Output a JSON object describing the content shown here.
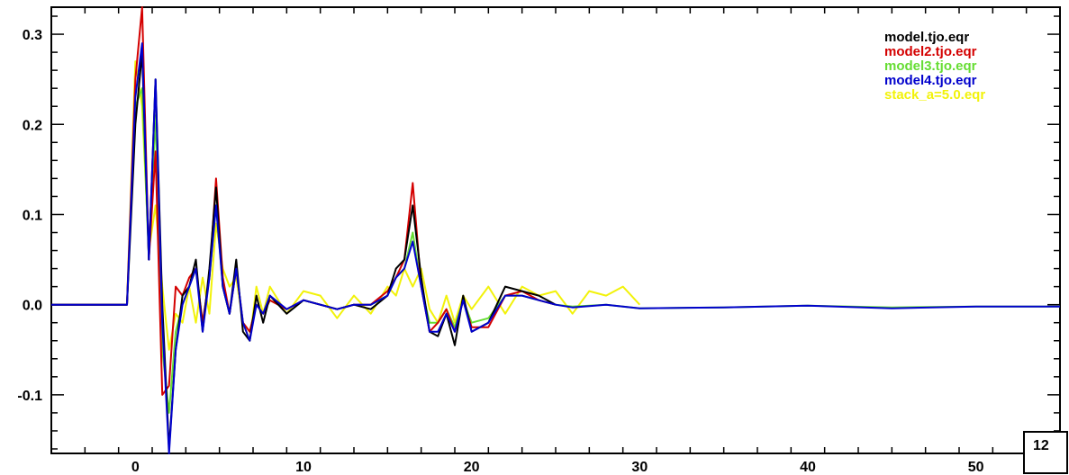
{
  "chart_data": {
    "type": "line",
    "title": "",
    "xlabel": "",
    "ylabel": "",
    "xlim": [
      -5,
      55
    ],
    "ylim": [
      -0.165,
      0.33
    ],
    "x_ticks": [
      0,
      10,
      20,
      30,
      40,
      50
    ],
    "x_tick_labels": [
      "0",
      "10",
      "20",
      "30",
      "40",
      "50"
    ],
    "y_ticks": [
      -0.1,
      0.0,
      0.1,
      0.2,
      0.3
    ],
    "y_tick_labels": [
      "-0.1",
      "0.0",
      "0.1",
      "0.2",
      "0.3"
    ],
    "legend_position": "top-right",
    "corner_label": "12",
    "grid": false,
    "series": [
      {
        "name": "model.tjo.eqr",
        "color": "#000000",
        "x": [
          -5,
          -2,
          -0.5,
          0,
          0.4,
          0.8,
          1.2,
          1.6,
          2.0,
          2.4,
          2.8,
          3.2,
          3.6,
          4.0,
          4.4,
          4.8,
          5.2,
          5.6,
          6.0,
          6.4,
          6.8,
          7.2,
          7.6,
          8,
          9,
          10,
          11,
          12,
          13,
          14,
          15,
          15.5,
          16,
          16.5,
          17,
          17.5,
          18,
          18.5,
          19,
          19.5,
          20,
          21,
          22,
          23,
          24,
          25
        ],
        "y": [
          0,
          0,
          0,
          0.2,
          0.28,
          0.05,
          0.25,
          0.0,
          -0.16,
          -0.05,
          0.01,
          0.02,
          0.05,
          -0.03,
          0.04,
          0.13,
          0.02,
          -0.01,
          0.05,
          -0.03,
          -0.04,
          0.01,
          -0.02,
          0.01,
          -0.01,
          0.005,
          0.0,
          -0.005,
          0.0,
          -0.005,
          0.01,
          0.04,
          0.05,
          0.11,
          0.03,
          -0.03,
          -0.035,
          -0.01,
          -0.045,
          0.01,
          -0.03,
          -0.02,
          0.02,
          0.015,
          0.01,
          0.0
        ]
      },
      {
        "name": "model2.tjo.eqr",
        "color": "#d40000",
        "x": [
          -5,
          -2,
          -0.5,
          0,
          0.4,
          0.8,
          1.2,
          1.6,
          2.0,
          2.4,
          2.8,
          3.2,
          3.6,
          4.0,
          4.4,
          4.8,
          5.2,
          5.6,
          6.0,
          6.4,
          6.8,
          7.2,
          7.6,
          8,
          9,
          10,
          11,
          12,
          13,
          14,
          15,
          15.5,
          16,
          16.5,
          17,
          17.5,
          18,
          18.5,
          19,
          19.5,
          20,
          21,
          22,
          23,
          24,
          25
        ],
        "y": [
          0,
          0,
          0,
          0.25,
          0.33,
          0.05,
          0.17,
          -0.1,
          -0.09,
          0.02,
          0.01,
          0.03,
          0.04,
          -0.02,
          0.03,
          0.14,
          0.03,
          -0.01,
          0.04,
          -0.02,
          -0.03,
          0.0,
          -0.01,
          0.005,
          -0.005,
          0.005,
          0.0,
          -0.005,
          0.0,
          0.0,
          0.015,
          0.03,
          0.05,
          0.135,
          0.02,
          -0.03,
          -0.02,
          -0.005,
          -0.03,
          0.005,
          -0.025,
          -0.025,
          0.01,
          0.015,
          0.005,
          0.0
        ]
      },
      {
        "name": "model3.tjo.eqr",
        "color": "#66dd33",
        "x": [
          -5,
          -2,
          -0.5,
          0,
          0.4,
          0.8,
          1.2,
          1.6,
          2.0,
          2.4,
          2.8,
          3.2,
          3.6,
          4.0,
          4.4,
          4.8,
          5.2,
          5.6,
          6.0,
          6.4,
          6.8,
          7.2,
          7.6,
          8,
          9,
          10,
          11,
          12,
          13,
          14,
          15,
          15.5,
          16,
          16.5,
          17,
          17.5,
          18,
          18.5,
          19,
          19.5,
          20,
          21,
          22,
          23,
          24,
          25,
          26,
          28,
          30,
          35,
          40,
          45,
          50,
          55
        ],
        "y": [
          0,
          0,
          0,
          0.22,
          0.24,
          0.05,
          0.21,
          -0.05,
          -0.12,
          -0.03,
          0.0,
          0.02,
          0.04,
          -0.02,
          0.03,
          0.11,
          0.02,
          -0.01,
          0.04,
          -0.02,
          -0.03,
          0.0,
          -0.01,
          0.005,
          -0.005,
          0.005,
          0.0,
          -0.005,
          0.0,
          0.0,
          0.01,
          0.03,
          0.04,
          0.08,
          0.02,
          -0.02,
          -0.02,
          -0.005,
          -0.025,
          0.005,
          -0.02,
          -0.015,
          0.01,
          0.01,
          0.005,
          0.0,
          -0.002,
          0.0,
          -0.004,
          -0.003,
          -0.001,
          -0.003,
          -0.002,
          -0.002
        ]
      },
      {
        "name": "model4.tjo.eqr",
        "color": "#0000cc",
        "x": [
          -5,
          -2,
          -0.5,
          0,
          0.4,
          0.8,
          1.2,
          1.6,
          2.0,
          2.4,
          2.8,
          3.2,
          3.6,
          4.0,
          4.4,
          4.8,
          5.2,
          5.6,
          6.0,
          6.4,
          6.8,
          7.2,
          7.6,
          8,
          9,
          10,
          11,
          12,
          13,
          14,
          15,
          15.5,
          16,
          16.5,
          17,
          17.5,
          18,
          18.5,
          19,
          19.5,
          20,
          21,
          22,
          23,
          24,
          25,
          26,
          28,
          30,
          35,
          40,
          45,
          50,
          55
        ],
        "y": [
          0,
          0,
          0,
          0.23,
          0.29,
          0.05,
          0.25,
          -0.02,
          -0.17,
          -0.05,
          0.0,
          0.02,
          0.04,
          -0.03,
          0.03,
          0.11,
          0.02,
          -0.01,
          0.04,
          -0.02,
          -0.04,
          0.0,
          -0.01,
          0.01,
          -0.005,
          0.005,
          0.0,
          -0.005,
          0.0,
          0.0,
          0.01,
          0.03,
          0.04,
          0.07,
          0.02,
          -0.03,
          -0.03,
          -0.01,
          -0.03,
          0.005,
          -0.03,
          -0.02,
          0.01,
          0.01,
          0.005,
          0.0,
          -0.003,
          0.0,
          -0.004,
          -0.003,
          -0.001,
          -0.004,
          -0.002,
          -0.002
        ]
      },
      {
        "name": "stack_a=5.0.eqr",
        "color": "#f2f20a",
        "x": [
          -5,
          -2,
          -0.5,
          0,
          0.4,
          0.8,
          1.2,
          1.6,
          2.0,
          2.4,
          2.8,
          3.2,
          3.6,
          4.0,
          4.4,
          4.8,
          5.2,
          5.6,
          6.0,
          6.4,
          6.8,
          7.2,
          7.6,
          8,
          9,
          10,
          11,
          12,
          13,
          14,
          15,
          15.5,
          16,
          16.5,
          17,
          17.5,
          18,
          18.5,
          19,
          19.5,
          20,
          21,
          22,
          23,
          24,
          25,
          26,
          27,
          28,
          29,
          29.5,
          30
        ],
        "y": [
          0,
          0,
          0,
          0.27,
          0.22,
          0.06,
          0.11,
          0.02,
          -0.05,
          -0.01,
          -0.02,
          0.02,
          -0.02,
          0.03,
          -0.01,
          0.09,
          0.04,
          0.02,
          0.03,
          -0.02,
          -0.04,
          0.02,
          -0.01,
          0.02,
          -0.01,
          0.015,
          0.01,
          -0.015,
          0.01,
          -0.01,
          0.02,
          0.01,
          0.04,
          0.02,
          0.04,
          -0.005,
          -0.02,
          0.01,
          -0.02,
          0.01,
          -0.005,
          0.02,
          -0.01,
          0.02,
          0.01,
          0.015,
          -0.01,
          0.015,
          0.01,
          0.02,
          0.01,
          0.0
        ]
      }
    ]
  }
}
